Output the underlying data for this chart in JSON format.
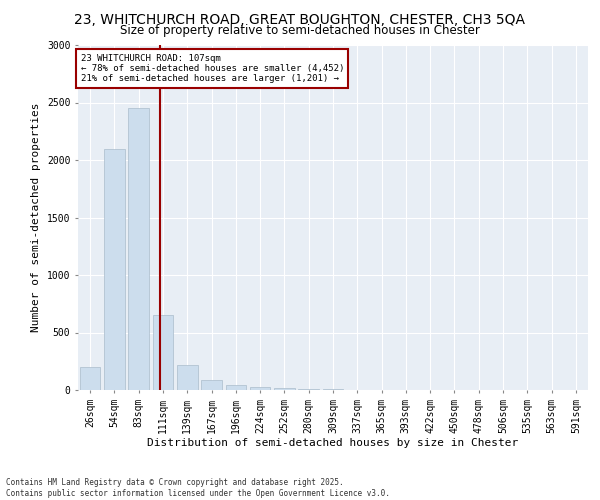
{
  "title": "23, WHITCHURCH ROAD, GREAT BOUGHTON, CHESTER, CH3 5QA",
  "subtitle": "Size of property relative to semi-detached houses in Chester",
  "xlabel": "Distribution of semi-detached houses by size in Chester",
  "ylabel": "Number of semi-detached properties",
  "footer_line1": "Contains HM Land Registry data © Crown copyright and database right 2025.",
  "footer_line2": "Contains public sector information licensed under the Open Government Licence v3.0.",
  "bin_labels": [
    "26sqm",
    "54sqm",
    "83sqm",
    "111sqm",
    "139sqm",
    "167sqm",
    "196sqm",
    "224sqm",
    "252sqm",
    "280sqm",
    "309sqm",
    "337sqm",
    "365sqm",
    "393sqm",
    "422sqm",
    "450sqm",
    "478sqm",
    "506sqm",
    "535sqm",
    "563sqm",
    "591sqm"
  ],
  "bar_values": [
    200,
    2100,
    2450,
    650,
    220,
    90,
    45,
    25,
    15,
    8,
    5,
    3,
    2,
    1,
    1,
    0,
    0,
    0,
    0,
    0,
    0
  ],
  "bar_color": "#ccdded",
  "bar_edge_color": "#aabccc",
  "vline_color": "#990000",
  "annotation_text": "23 WHITCHURCH ROAD: 107sqm\n← 78% of semi-detached houses are smaller (4,452)\n21% of semi-detached houses are larger (1,201) →",
  "annotation_box_color": "#990000",
  "annotation_bg_color": "#ffffff",
  "ylim": [
    0,
    3000
  ],
  "yticks": [
    0,
    500,
    1000,
    1500,
    2000,
    2500,
    3000
  ],
  "figure_bg": "#ffffff",
  "plot_bg": "#e8eef5",
  "grid_color": "#ffffff",
  "title_fontsize": 10,
  "subtitle_fontsize": 8.5,
  "axis_label_fontsize": 8,
  "tick_fontsize": 7,
  "footer_fontsize": 5.5
}
